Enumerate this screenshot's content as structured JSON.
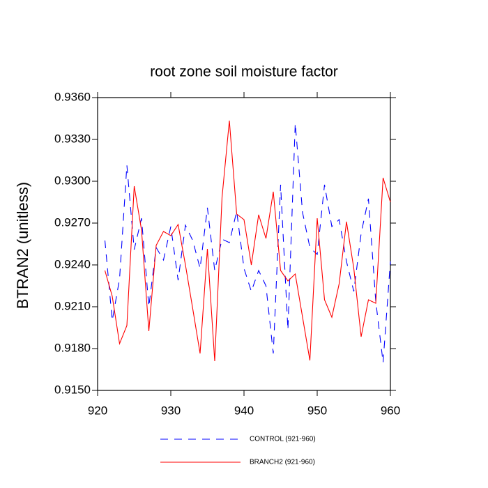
{
  "chart_data": {
    "type": "line",
    "title": "root zone soil moisture factor",
    "y_label": "BTRAN2  (unitless)",
    "x": [
      921,
      922,
      923,
      924,
      925,
      926,
      927,
      928,
      929,
      930,
      931,
      932,
      933,
      934,
      935,
      936,
      937,
      938,
      939,
      940,
      941,
      942,
      943,
      944,
      945,
      946,
      947,
      948,
      949,
      950,
      951,
      952,
      953,
      954,
      955,
      956,
      957,
      958,
      959,
      960
    ],
    "series": [
      {
        "name": "CONTROL (921-960)",
        "color": "#0000ff",
        "line_style": "dashed",
        "values": [
          0.92575,
          0.92,
          0.923,
          0.93115,
          0.9251,
          0.92735,
          0.921,
          0.92525,
          0.92435,
          0.92675,
          0.9229,
          0.92685,
          0.92575,
          0.92375,
          0.9281,
          0.9236,
          0.92585,
          0.9256,
          0.92785,
          0.92375,
          0.9221,
          0.9236,
          0.9225,
          0.91765,
          0.92975,
          0.91935,
          0.93415,
          0.92775,
          0.92525,
          0.92475,
          0.92975,
          0.92675,
          0.92725,
          0.92425,
          0.9221,
          0.92625,
          0.92875,
          0.9214,
          0.917,
          0.92425
        ]
      },
      {
        "name": "BRANCH2 (921-960)",
        "color": "#ff0000",
        "line_style": "solid",
        "values": [
          0.9236,
          0.92175,
          0.91835,
          0.91965,
          0.92965,
          0.9265,
          0.91925,
          0.9254,
          0.9264,
          0.9261,
          0.9269,
          0.924,
          0.92085,
          0.91765,
          0.92515,
          0.9171,
          0.92885,
          0.93435,
          0.92765,
          0.92725,
          0.924,
          0.9276,
          0.9259,
          0.92925,
          0.9236,
          0.92285,
          0.92335,
          0.92025,
          0.91715,
          0.92735,
          0.9215,
          0.92025,
          0.92265,
          0.9271,
          0.92375,
          0.91885,
          0.9215,
          0.92125,
          0.93025,
          0.9285
        ]
      }
    ],
    "xlim": [
      920,
      960
    ],
    "xticks": [
      920,
      930,
      940,
      950,
      960
    ],
    "ylim": [
      0.915,
      0.936
    ],
    "yticks": [
      {
        "value": 0.915,
        "label": "0.9150"
      },
      {
        "value": 0.918,
        "label": "0.9180"
      },
      {
        "value": 0.921,
        "label": "0.9210"
      },
      {
        "value": 0.924,
        "label": "0.9240"
      },
      {
        "value": 0.927,
        "label": "0.9270"
      },
      {
        "value": 0.93,
        "label": "0.9300"
      },
      {
        "value": 0.933,
        "label": "0.9330"
      },
      {
        "value": 0.936,
        "label": "0.9360"
      }
    ],
    "legend": "bottom"
  }
}
